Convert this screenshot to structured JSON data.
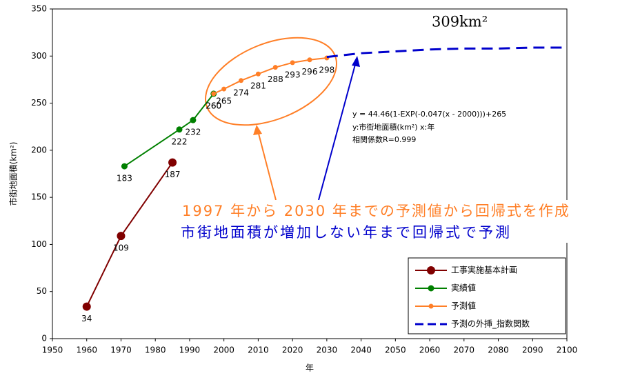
{
  "chart_data": {
    "type": "line",
    "x_label": "年",
    "y_label": "市街地面積(km²)",
    "xlim": [
      1950,
      2100
    ],
    "xticks": [
      1950,
      1960,
      1970,
      1980,
      1990,
      2000,
      2010,
      2020,
      2030,
      2040,
      2050,
      2060,
      2070,
      2080,
      2090,
      2100
    ],
    "ylim": [
      0,
      350
    ],
    "yticks": [
      0,
      50,
      100,
      150,
      200,
      250,
      300,
      350
    ],
    "grid": false,
    "legend": "lower right",
    "series": [
      {
        "name": "工事実施基本計画",
        "color": "#800000",
        "marker": true,
        "line_style": "solid",
        "x": [
          1960,
          1970,
          1985
        ],
        "values": [
          34,
          109,
          187
        ]
      },
      {
        "name": "実績値",
        "color": "#008000",
        "marker": true,
        "line_style": "solid",
        "x": [
          1971,
          1987,
          1991,
          1997
        ],
        "values": [
          183,
          222,
          232,
          260
        ]
      },
      {
        "name": "予測値",
        "color": "#ff7f27",
        "marker": true,
        "line_style": "solid",
        "x": [
          1997,
          2000,
          2005,
          2010,
          2015,
          2020,
          2025,
          2030
        ],
        "values": [
          260,
          265,
          274,
          281,
          288,
          293,
          296,
          298
        ]
      },
      {
        "name": "予測の外挿_指数関数",
        "color": "#0000cc",
        "marker": false,
        "line_style": "dashed",
        "x": [
          2030,
          2040,
          2050,
          2060,
          2070,
          2080,
          2090,
          2100
        ],
        "values": [
          299,
          303,
          305,
          307,
          308,
          308,
          309,
          309
        ]
      }
    ],
    "annotations": [
      "309km²",
      "y = 44.46(1-EXP(-0.047(x - 2000)))+265",
      "y:市街地面積(km²)  x:年",
      "相関係数R=0.999",
      "1997 年から 2030 年までの予測値から回帰式を作成",
      "市街地面積が増加しない年まで回帰式で予測"
    ]
  }
}
